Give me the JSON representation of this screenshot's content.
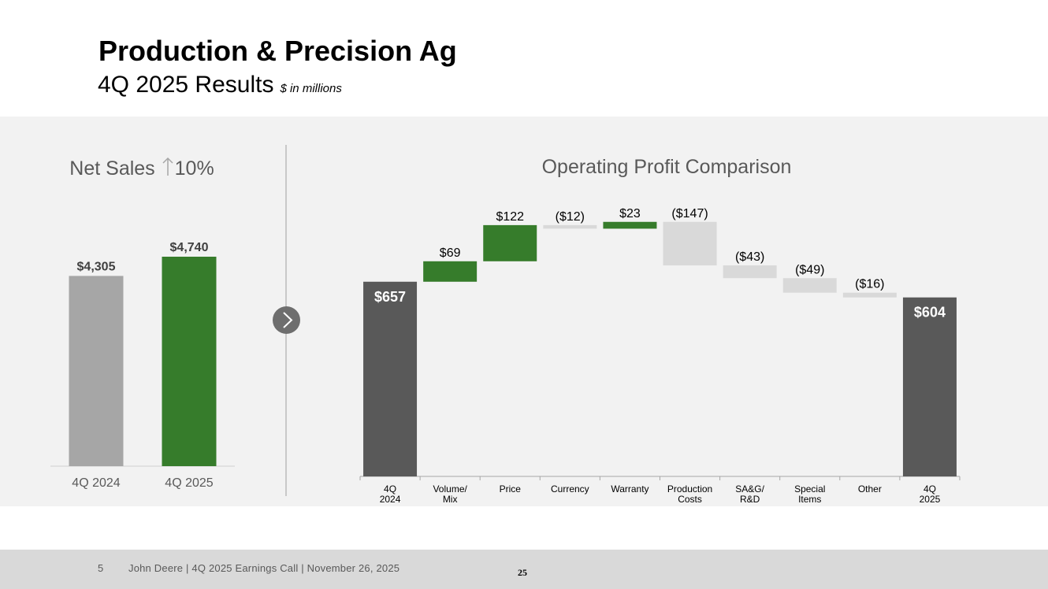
{
  "header": {
    "title": "Production & Precision Ag",
    "subtitle": "4Q 2025 Results",
    "units": "$ in millions"
  },
  "footer": {
    "slide_number": "5",
    "text": "John Deere | 4Q 2025 Earnings Call | November 26, 2025",
    "page_mark": "25"
  },
  "icons": {
    "next_arrow": "chevron-right-icon",
    "up_arrow": "arrow-up-icon"
  },
  "colors": {
    "green": "#367c2b",
    "gray_prior": "#a6a6a6",
    "dark_total": "#595959",
    "negative": "#d9d9d9"
  },
  "chart_data": [
    {
      "type": "bar",
      "title_prefix": "Net Sales",
      "title_change": "10%",
      "categories": [
        "4Q 2024",
        "4Q 2025"
      ],
      "values": [
        4305,
        4740
      ],
      "labels": [
        "$4,305",
        "$4,740"
      ],
      "colors": [
        "#a6a6a6",
        "#367c2b"
      ],
      "ylim": [
        0,
        4740
      ]
    },
    {
      "type": "waterfall",
      "title": "Operating Profit Comparison",
      "categories": [
        "4Q 2024",
        "Volume/ Mix",
        "Price",
        "Currency",
        "Warranty",
        "Production Costs",
        "SA&G/ R&D",
        "Special Items",
        "Other",
        "4Q 2025"
      ],
      "values": [
        657,
        69,
        122,
        -12,
        23,
        -147,
        -43,
        -49,
        -16,
        604
      ],
      "kinds": [
        "total",
        "delta",
        "delta",
        "delta",
        "delta",
        "delta",
        "delta",
        "delta",
        "delta",
        "total"
      ],
      "labels": [
        "$657",
        "$69",
        "$122",
        "($12)",
        "$23",
        "($147)",
        "($43)",
        "($49)",
        "($16)",
        "$604"
      ]
    }
  ]
}
